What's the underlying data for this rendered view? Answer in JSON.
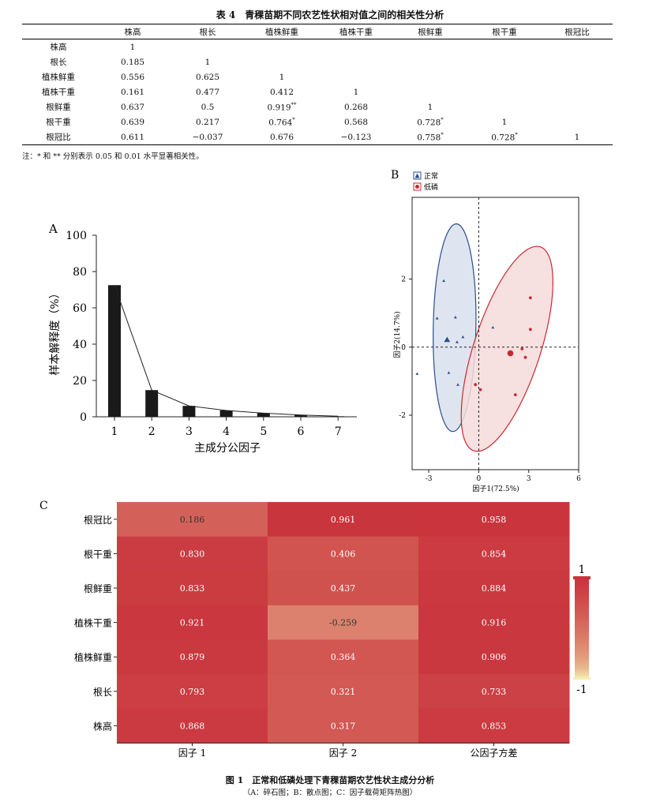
{
  "table": {
    "title": "表 4　青稞苗期不同农艺性状相对值之间的相关性分析",
    "columns": [
      "",
      "株高",
      "根长",
      "植株鲜重",
      "植株干重",
      "根鲜重",
      "根干重",
      "根冠比"
    ],
    "rows": [
      {
        "label": "株高",
        "cells": [
          {
            "v": "1",
            "s": ""
          }
        ]
      },
      {
        "label": "根长",
        "cells": [
          {
            "v": "0.185",
            "s": ""
          },
          {
            "v": "1",
            "s": ""
          }
        ]
      },
      {
        "label": "植株鲜重",
        "cells": [
          {
            "v": "0.556",
            "s": ""
          },
          {
            "v": "0.625",
            "s": ""
          },
          {
            "v": "1",
            "s": ""
          }
        ]
      },
      {
        "label": "植株干重",
        "cells": [
          {
            "v": "0.161",
            "s": ""
          },
          {
            "v": "0.477",
            "s": ""
          },
          {
            "v": "0.412",
            "s": ""
          },
          {
            "v": "1",
            "s": ""
          }
        ]
      },
      {
        "label": "根鲜重",
        "cells": [
          {
            "v": "0.637",
            "s": ""
          },
          {
            "v": "0.5",
            "s": ""
          },
          {
            "v": "0.919",
            "s": "**"
          },
          {
            "v": "0.268",
            "s": ""
          },
          {
            "v": "1",
            "s": ""
          }
        ]
      },
      {
        "label": "根干重",
        "cells": [
          {
            "v": "0.639",
            "s": ""
          },
          {
            "v": "0.217",
            "s": ""
          },
          {
            "v": "0.764",
            "s": "*"
          },
          {
            "v": "0.568",
            "s": ""
          },
          {
            "v": "0.728",
            "s": "*"
          },
          {
            "v": "1",
            "s": ""
          }
        ]
      },
      {
        "label": "根冠比",
        "cells": [
          {
            "v": "0.611",
            "s": ""
          },
          {
            "v": "−0.037",
            "s": ""
          },
          {
            "v": "0.676",
            "s": ""
          },
          {
            "v": "−0.123",
            "s": ""
          },
          {
            "v": "0.758",
            "s": "*"
          },
          {
            "v": "0.728",
            "s": "*"
          },
          {
            "v": "1",
            "s": ""
          }
        ]
      }
    ],
    "note": "注：* 和 ** 分别表示 0.05 和 0.01 水平显著相关性。"
  },
  "figure": {
    "caption": "图 1　正常和低磷处理下青稞苗期农艺性状主成分分析",
    "subcaption": "（A：碎石图；B：散点图；C：因子载荷矩阵热图）"
  },
  "chart_data": [
    {
      "panel": "A",
      "type": "bar",
      "categories": [
        "1",
        "2",
        "3",
        "4",
        "5",
        "6",
        "7"
      ],
      "values": [
        72.5,
        14.7,
        6.0,
        3.5,
        2.0,
        1.0,
        0.3
      ],
      "line_values": [
        72.5,
        14.7,
        6.0,
        3.5,
        2.0,
        1.0,
        0.3
      ],
      "ylim": [
        0,
        100
      ],
      "yticks": [
        0,
        20,
        40,
        60,
        80,
        100
      ],
      "xlabel": "主成分公因子",
      "ylabel": "样本解释度（%）",
      "bar_color": "#1a1a1a"
    },
    {
      "panel": "B",
      "type": "scatter",
      "xlabel": "因子1(72.5%)",
      "ylabel": "因子2(14.7%)",
      "xlim": [
        -4.0,
        6.0
      ],
      "ylim": [
        -3.6,
        4.4
      ],
      "xticks": [
        -3,
        0,
        3,
        6
      ],
      "yticks": [
        -2,
        0,
        2
      ],
      "legend_position": "top-left",
      "series": [
        {
          "name": "正常",
          "marker": "triangle",
          "color": "#2b4f87",
          "fill": "#d8e1ee",
          "points": [
            [
              -2.1,
              1.95
            ],
            [
              -2.5,
              0.85
            ],
            [
              -1.4,
              0.88
            ],
            [
              -1.3,
              0.15
            ],
            [
              -0.95,
              0.3
            ],
            [
              0.85,
              0.58
            ],
            [
              -3.7,
              -0.78
            ],
            [
              -1.8,
              -0.75
            ],
            [
              -1.25,
              -1.1
            ]
          ],
          "centroid": [
            -1.9,
            0.22
          ],
          "ellipse": {
            "cx": -1.45,
            "cy": 0.57,
            "rx": 1.28,
            "ry": 3.05,
            "angle_deg": 1
          }
        },
        {
          "name": "低磷",
          "marker": "circle",
          "color": "#c62a2f",
          "fill": "#f6dadb",
          "points": [
            [
              3.1,
              1.45
            ],
            [
              3.1,
              0.52
            ],
            [
              2.6,
              -0.05
            ],
            [
              2.8,
              -0.3
            ],
            [
              -0.2,
              -1.1
            ],
            [
              0.1,
              -1.25
            ],
            [
              2.2,
              -1.4
            ]
          ],
          "centroid": [
            1.9,
            -0.18
          ],
          "ellipse": {
            "cx": 1.7,
            "cy": -0.05,
            "rx": 2.0,
            "ry": 3.15,
            "angle_deg": 18
          }
        }
      ]
    },
    {
      "panel": "C",
      "type": "heatmap",
      "rows": [
        "根冠比",
        "根干重",
        "根鲜重",
        "植株干重",
        "植株鲜重",
        "根长",
        "株高"
      ],
      "columns": [
        "因子 1",
        "因子 2",
        "公因子方差"
      ],
      "values": [
        [
          0.186,
          0.961,
          0.958
        ],
        [
          0.83,
          0.406,
          0.854
        ],
        [
          0.833,
          0.437,
          0.884
        ],
        [
          0.921,
          -0.259,
          0.916
        ],
        [
          0.879,
          0.364,
          0.906
        ],
        [
          0.793,
          0.321,
          0.733
        ],
        [
          0.868,
          0.317,
          0.853
        ]
      ],
      "labels": [
        [
          "0.186",
          "0.961",
          "0.958"
        ],
        [
          "0.830",
          "0.406",
          "0.854"
        ],
        [
          "0.833",
          "0.437",
          "0.884"
        ],
        [
          "0.921",
          "-0.259",
          "0.916"
        ],
        [
          "0.879",
          "0.364",
          "0.906"
        ],
        [
          "0.793",
          "0.321",
          "0.733"
        ],
        [
          "0.868",
          "0.317",
          "0.853"
        ]
      ],
      "color_range": [
        -1,
        1
      ],
      "color_low": "#f6edb0",
      "color_high": "#c9333c",
      "colorbar_labels": [
        "1",
        "-1"
      ]
    }
  ]
}
